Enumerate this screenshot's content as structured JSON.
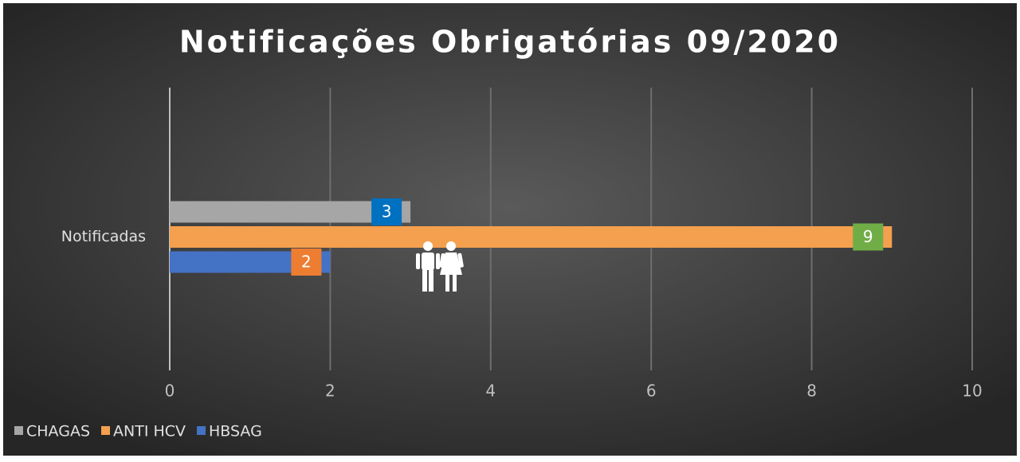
{
  "chart_data": {
    "type": "bar",
    "orientation": "horizontal",
    "title": "Notificações Obrigatórias 09/2020",
    "categories": [
      "Notificadas"
    ],
    "series": [
      {
        "name": "CHAGAS",
        "color": "#a6a6a6",
        "label_color": "#0070c0",
        "values": [
          3
        ]
      },
      {
        "name": "ANTI HCV",
        "color": "#f4a04e",
        "label_color": "#70ad47",
        "values": [
          9
        ]
      },
      {
        "name": "HBSAG",
        "color": "#4472c4",
        "label_color": "#ed7d31",
        "values": [
          2
        ]
      }
    ],
    "xlim": [
      0,
      10
    ],
    "xticks": [
      0,
      2,
      4,
      6,
      8,
      10
    ],
    "grid": true,
    "legend": "bottom-left"
  }
}
